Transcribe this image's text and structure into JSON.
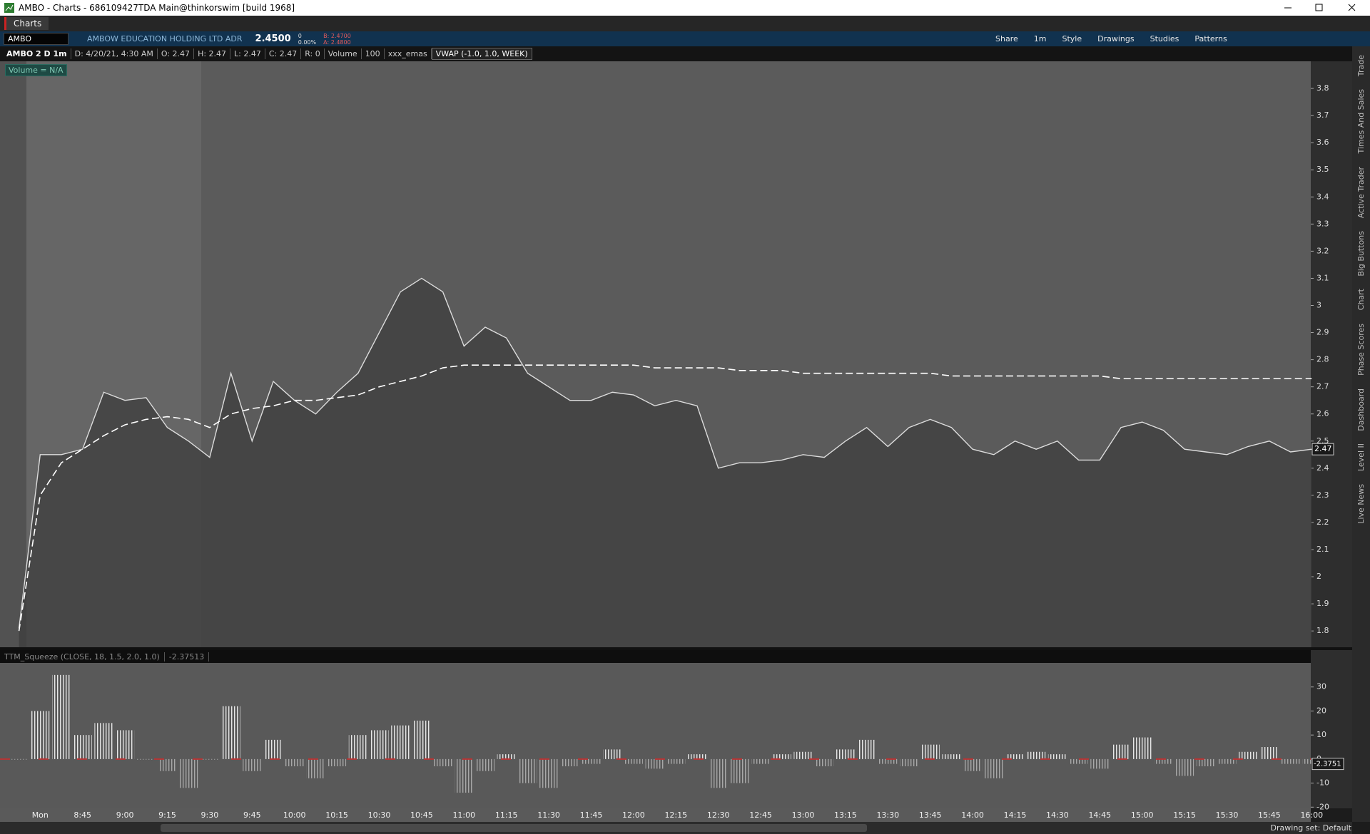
{
  "window": {
    "title": "AMBO - Charts - 686109427TDA Main@thinkorswim [build 1968]",
    "tab": "Charts"
  },
  "toolbar": {
    "symbol": "AMBO",
    "description": "AMBOW EDUCATION HOLDING LTD ADR",
    "last": "2.4500",
    "change": "0",
    "change_pct": "0.00%",
    "bid": "B: 2.4700",
    "ask": "A: 2.4800",
    "buttons": [
      "Share",
      "1m",
      "Style",
      "Drawings",
      "Studies",
      "Patterns"
    ]
  },
  "chart_header": {
    "items": [
      "AMBO 2 D 1m",
      "D: 4/20/21, 4:30 AM",
      "O: 2.47",
      "H: 2.47",
      "L: 2.47",
      "C: 2.47",
      "R: 0",
      "Volume",
      "100",
      "xxx_emas",
      "VWAP (-1.0, 1.0, WEEK)"
    ],
    "volume_note": "Volume = N/A"
  },
  "sidebar": [
    "Trade",
    "Times And Sales",
    "Active Trader",
    "Big Buttons",
    "Chart",
    "Phase Scores",
    "Dashboard",
    "Level II",
    "Live News"
  ],
  "status": "Drawing set: Default",
  "chart_data": [
    {
      "type": "line",
      "time_labels": [
        "Mon",
        "8:45",
        "9:00",
        "9:15",
        "9:30",
        "9:45",
        "10:00",
        "10:15",
        "10:30",
        "10:45",
        "11:00",
        "11:15",
        "11:30",
        "11:45",
        "12:00",
        "12:15",
        "12:30",
        "12:45",
        "13:00",
        "13:15",
        "13:30",
        "13:45",
        "14:00",
        "14:15",
        "14:30",
        "14:45",
        "15:00",
        "15:15",
        "15:30",
        "15:45",
        "16:00"
      ],
      "series": [
        {
          "name": "Close",
          "color": "#dcdcdc",
          "values": [
            1.81,
            2.45,
            2.45,
            2.47,
            2.68,
            2.65,
            2.66,
            2.55,
            2.5,
            2.44,
            2.75,
            2.5,
            2.72,
            2.65,
            2.6,
            2.68,
            2.75,
            2.9,
            3.05,
            3.1,
            3.05,
            2.85,
            2.92,
            2.88,
            2.75,
            2.7,
            2.65,
            2.65,
            2.68,
            2.67,
            2.63,
            2.65,
            2.63,
            2.4,
            2.42,
            2.42,
            2.43,
            2.45,
            2.44,
            2.5,
            2.55,
            2.48,
            2.55,
            2.58,
            2.55,
            2.47,
            2.45,
            2.5,
            2.47,
            2.5,
            2.43,
            2.43,
            2.55,
            2.57,
            2.54,
            2.47,
            2.46,
            2.45,
            2.48,
            2.5,
            2.46,
            2.47
          ]
        },
        {
          "name": "VWAP",
          "color": "#ffffff",
          "values": [
            1.8,
            2.3,
            2.42,
            2.47,
            2.52,
            2.56,
            2.58,
            2.59,
            2.58,
            2.55,
            2.6,
            2.62,
            2.63,
            2.65,
            2.65,
            2.66,
            2.67,
            2.7,
            2.72,
            2.74,
            2.77,
            2.78,
            2.78,
            2.78,
            2.78,
            2.78,
            2.78,
            2.78,
            2.78,
            2.78,
            2.77,
            2.77,
            2.77,
            2.77,
            2.76,
            2.76,
            2.76,
            2.75,
            2.75,
            2.75,
            2.75,
            2.75,
            2.75,
            2.75,
            2.74,
            2.74,
            2.74,
            2.74,
            2.74,
            2.74,
            2.74,
            2.74,
            2.73,
            2.73,
            2.73,
            2.73,
            2.73,
            2.73,
            2.73,
            2.73,
            2.73,
            2.73
          ]
        }
      ],
      "last_label": "2.47",
      "ylim": [
        1.74,
        3.9
      ],
      "yticks": [
        3.8,
        3.7,
        3.6,
        3.5,
        3.4,
        3.3,
        3.2,
        3.1,
        3,
        2.9,
        2.8,
        2.7,
        2.6,
        2.5,
        2.4,
        2.3,
        2.2,
        2.1,
        2,
        1.9,
        1.8
      ]
    },
    {
      "type": "bar",
      "title": "TTM_Squeeze (CLOSE, 18, 1.5, 2.0, 1.0)",
      "current": "-2.37513",
      "last_label": "-2.3751",
      "values": [
        0,
        20,
        35,
        10,
        15,
        12,
        0,
        -5,
        -12,
        0,
        22,
        -5,
        8,
        -3,
        -8,
        -3,
        10,
        12,
        14,
        16,
        -3,
        -14,
        -5,
        2,
        -10,
        -12,
        -3,
        -2,
        4,
        -2,
        -4,
        -2,
        2,
        -12,
        -10,
        -2,
        2,
        3,
        -3,
        4,
        8,
        -2,
        -3,
        6,
        2,
        -5,
        -8,
        2,
        3,
        2,
        -2,
        -4,
        6,
        9,
        -2,
        -7,
        -3,
        -2,
        3,
        5,
        -2,
        -2
      ],
      "colors": {
        "positive": "#e6e6e6",
        "negative": "#a8a8a8"
      },
      "ylim": [
        -20.5,
        40
      ],
      "yticks": [
        30,
        20,
        10,
        0,
        -10,
        -20
      ]
    }
  ]
}
